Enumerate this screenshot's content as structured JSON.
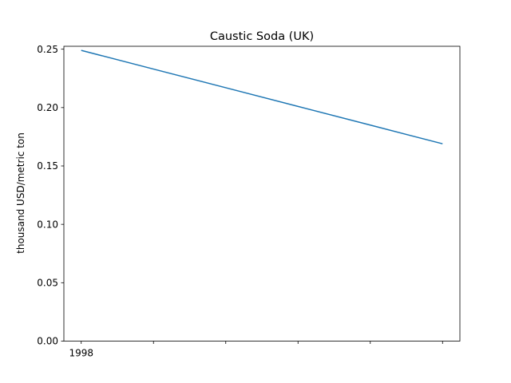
{
  "chart_data": {
    "type": "line",
    "title": "Caustic Soda (UK)",
    "xlabel": "",
    "ylabel": "thousand USD/metric ton",
    "x": [
      0,
      1,
      2,
      3,
      4,
      5
    ],
    "x_tick_labels": [
      "1998",
      "",
      "",
      "",
      "",
      ""
    ],
    "xlim": [
      -0.24,
      5.24
    ],
    "ylim": [
      0.0,
      0.25
    ],
    "y_ticks": [
      0.0,
      0.05,
      0.1,
      0.15,
      0.2,
      0.25
    ],
    "y_tick_labels": [
      "0.00",
      "0.05",
      "0.10",
      "0.15",
      "0.20",
      "0.25"
    ],
    "series": [
      {
        "values": [
          0.249,
          0.233,
          0.217,
          0.201,
          0.185,
          0.169
        ],
        "color": "#1f77b4"
      }
    ],
    "grid": false,
    "legend": "none"
  }
}
